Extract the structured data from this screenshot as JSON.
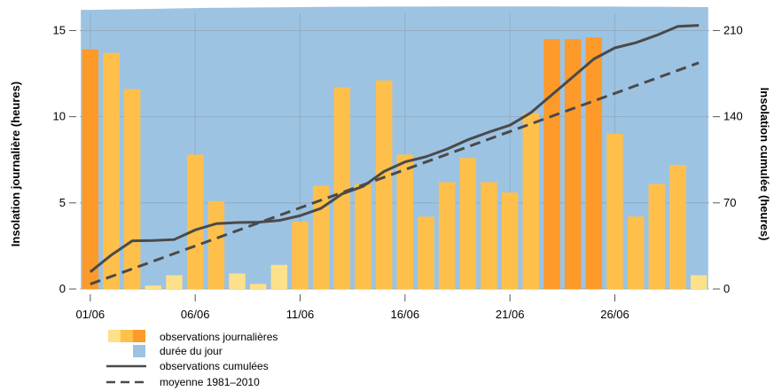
{
  "chart_data": {
    "type": "bar",
    "ylabel_left": "Insolation journalière (heures)",
    "ylabel_right": "Insolation cumulée (heures)",
    "ylim_left": [
      0,
      16
    ],
    "ylim_right": [
      0,
      224
    ],
    "yticks_left": [
      0,
      5,
      10,
      15
    ],
    "yticks_right": [
      0,
      70,
      140,
      210
    ],
    "x_start_day": 1,
    "x_end_day": 30,
    "xticks": [
      {
        "day": 1,
        "label": "01/06"
      },
      {
        "day": 6,
        "label": "06/06"
      },
      {
        "day": 11,
        "label": "11/06"
      },
      {
        "day": 16,
        "label": "16/06"
      },
      {
        "day": 21,
        "label": "21/06"
      },
      {
        "day": 26,
        "label": "26/06"
      }
    ],
    "daily_observations": [
      13.9,
      13.7,
      11.6,
      0.2,
      0.8,
      7.8,
      5.1,
      0.9,
      0.3,
      1.4,
      3.9,
      6.0,
      11.7,
      6.1,
      12.1,
      7.8,
      4.2,
      6.2,
      7.6,
      6.2,
      5.6,
      10.2,
      14.5,
      14.5,
      14.6,
      9.0,
      4.2,
      6.1,
      7.2,
      0.8
    ],
    "day_length": [
      16.2,
      16.22,
      16.24,
      16.26,
      16.28,
      16.3,
      16.32,
      16.33,
      16.34,
      16.35,
      16.36,
      16.37,
      16.38,
      16.38,
      16.39,
      16.39,
      16.39,
      16.4,
      16.4,
      16.4,
      16.4,
      16.4,
      16.4,
      16.39,
      16.39,
      16.39,
      16.38,
      16.38,
      16.37,
      16.36
    ],
    "cumulative_observed": [
      13.9,
      27.6,
      39.2,
      39.4,
      40.2,
      48.0,
      53.1,
      54.0,
      54.3,
      55.7,
      59.6,
      65.6,
      77.3,
      83.4,
      95.5,
      103.3,
      107.5,
      113.7,
      121.3,
      127.5,
      133.1,
      143.3,
      157.8,
      172.3,
      186.9,
      195.9,
      200.1,
      206.2,
      213.4,
      214.2
    ],
    "normal_1981_2010": [
      4.0,
      10.2,
      16.4,
      22.6,
      28.8,
      35.0,
      41.2,
      47.4,
      53.6,
      59.8,
      66.0,
      72.2,
      78.4,
      84.6,
      90.8,
      97.0,
      103.2,
      109.4,
      115.6,
      121.8,
      128.0,
      134.2,
      140.4,
      146.6,
      152.8,
      159.0,
      165.2,
      171.4,
      177.6,
      183.8
    ],
    "legend": {
      "placement": "bottom-left",
      "daily_label": "observations journalières",
      "daylength_label": "durée du jour",
      "cumulative_label": "observations cumulées",
      "normal_label": "moyenne 1981–2010"
    },
    "colors": {
      "day_length_fill": "#9dc3e3",
      "grid": "#8fa8bd",
      "bar_light": "#fde08a",
      "bar_mid": "#fec04a",
      "bar_dark": "#fd9a2a",
      "line": "#4a4a4a"
    },
    "grid": true
  }
}
